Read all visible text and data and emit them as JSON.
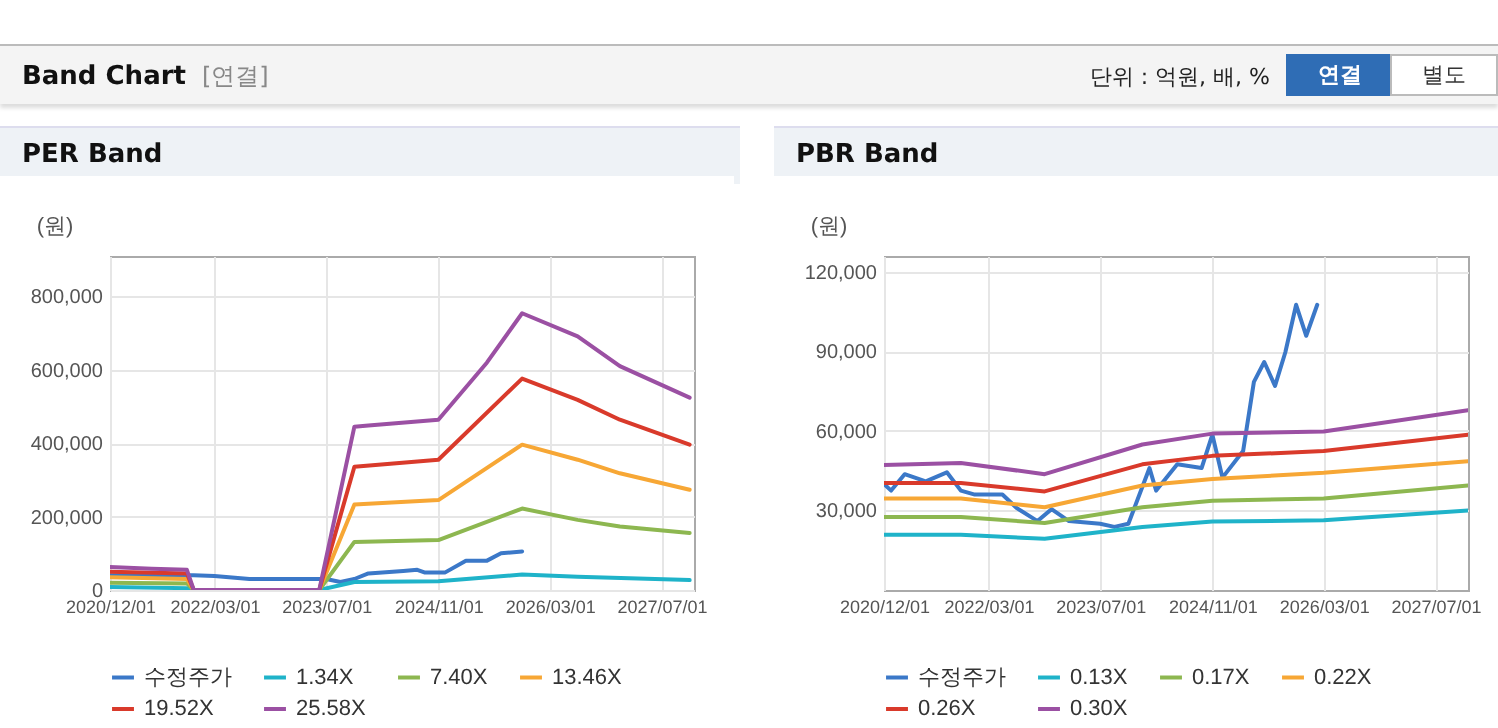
{
  "chart_data": [
    {
      "type": "other",
      "title": "Band Chart",
      "subtitle": "[연결]",
      "annotations": [
        "단위 : 억원, 배, %",
        "연결",
        "별도"
      ]
    },
    {
      "type": "line",
      "title": "PER Band",
      "ylabel": "(원)",
      "grid": true,
      "legend": "bottom",
      "xlim": [
        "2020-12-01",
        "2027-11-20"
      ],
      "xticks": [
        {
          "value": "2020-12-01",
          "label": "2020/12/01"
        },
        {
          "value": "2022-03-01",
          "label": "2022/03/01"
        },
        {
          "value": "2023-07-01",
          "label": "2023/07/01"
        },
        {
          "value": "2024-11-01",
          "label": "2024/11/01"
        },
        {
          "value": "2026-03-01",
          "label": "2026/03/01"
        },
        {
          "value": "2027-07-01",
          "label": "2027/07/01"
        }
      ],
      "ylim": [
        0,
        910000
      ],
      "yticks": [
        {
          "value": 0,
          "label": "0"
        },
        {
          "value": 200000,
          "label": "200,000"
        },
        {
          "value": 400000,
          "label": "400,000"
        },
        {
          "value": 600000,
          "label": "600,000"
        },
        {
          "value": 800000,
          "label": "800,000"
        }
      ],
      "series": [
        {
          "name": "수정주가",
          "color": "#3b78c8",
          "x": [
            "2020-12-01",
            "2021-12-01",
            "2022-03-01",
            "2022-08-01",
            "2023-07-01",
            "2023-09-01",
            "2023-11-01",
            "2024-01-01",
            "2024-06-01",
            "2024-08-01",
            "2024-09-01",
            "2024-12-01",
            "2025-03-01",
            "2025-06-01",
            "2025-08-01",
            "2025-11-01"
          ],
          "values": [
            40000,
            40000,
            38000,
            30000,
            30000,
            22000,
            30000,
            45000,
            52000,
            55000,
            48000,
            48000,
            80000,
            80000,
            100000,
            105000
          ]
        },
        {
          "name": "1.34X",
          "color": "#1fb3c9",
          "x": [
            "2020-12-01",
            "2021-11-01",
            "2021-12-01",
            "2023-06-01",
            "2023-11-01",
            "2024-11-01",
            "2025-11-01",
            "2026-07-01",
            "2027-11-01"
          ],
          "values": [
            8000,
            5000,
            0,
            0,
            22000,
            24000,
            42000,
            36000,
            27000
          ]
        },
        {
          "name": "7.40X",
          "color": "#8db750",
          "x": [
            "2020-12-01",
            "2021-11-01",
            "2021-12-01",
            "2023-06-01",
            "2023-11-01",
            "2024-11-01",
            "2025-11-01",
            "2026-07-01",
            "2027-01-01",
            "2027-11-01"
          ],
          "values": [
            20000,
            18000,
            0,
            0,
            131000,
            136000,
            222000,
            191000,
            173000,
            155000
          ]
        },
        {
          "name": "13.46X",
          "color": "#f7a735",
          "x": [
            "2020-12-01",
            "2021-11-01",
            "2021-12-01",
            "2023-06-01",
            "2023-11-01",
            "2024-11-01",
            "2025-11-01",
            "2026-07-01",
            "2027-01-01",
            "2027-11-01"
          ],
          "values": [
            35000,
            30000,
            0,
            0,
            233000,
            245000,
            396000,
            355000,
            318000,
            273000
          ]
        },
        {
          "name": "19.52X",
          "color": "#d93a2b",
          "x": [
            "2020-12-01",
            "2021-11-01",
            "2021-12-01",
            "2023-06-01",
            "2023-11-01",
            "2024-11-01",
            "2025-11-01",
            "2026-07-01",
            "2027-01-01",
            "2027-11-01"
          ],
          "values": [
            50000,
            45000,
            0,
            0,
            336000,
            355000,
            576000,
            518000,
            464000,
            396000
          ]
        },
        {
          "name": "25.58X",
          "color": "#9b50a3",
          "x": [
            "2020-12-01",
            "2021-06-01",
            "2021-11-01",
            "2021-12-01",
            "2023-06-01",
            "2023-11-01",
            "2024-01-01",
            "2024-11-01",
            "2025-06-01",
            "2025-11-01",
            "2026-07-01",
            "2027-01-01",
            "2027-11-01"
          ],
          "values": [
            63000,
            58000,
            55000,
            0,
            0,
            445000,
            448000,
            464000,
            620000,
            754000,
            691000,
            610000,
            524000
          ]
        }
      ]
    },
    {
      "type": "line",
      "title": "PBR Band",
      "ylabel": "(원)",
      "grid": true,
      "legend": "bottom",
      "xlim": [
        "2020-12-01",
        "2027-11-20"
      ],
      "xticks": [
        {
          "value": "2020-12-01",
          "label": "2020/12/01"
        },
        {
          "value": "2022-03-01",
          "label": "2022/03/01"
        },
        {
          "value": "2023-07-01",
          "label": "2023/07/01"
        },
        {
          "value": "2024-11-01",
          "label": "2024/11/01"
        },
        {
          "value": "2026-03-01",
          "label": "2026/03/01"
        },
        {
          "value": "2027-07-01",
          "label": "2027/07/01"
        }
      ],
      "ylim": [
        0,
        126000
      ],
      "yticks": [
        {
          "value": 30000,
          "label": "30,000"
        },
        {
          "value": 60000,
          "label": "60,000"
        },
        {
          "value": 90000,
          "label": "90,000"
        },
        {
          "value": 120000,
          "label": "120,000"
        }
      ],
      "series": [
        {
          "name": "수정주가",
          "color": "#3b78c8",
          "x": [
            "2020-12-01",
            "2021-01-01",
            "2021-03-01",
            "2021-06-01",
            "2021-09-01",
            "2021-11-01",
            "2022-01-01",
            "2022-05-01",
            "2022-07-01",
            "2022-10-01",
            "2022-12-01",
            "2023-02-15",
            "2023-07-01",
            "2023-09-01",
            "2023-11-01",
            "2024-02-01",
            "2024-03-01",
            "2024-06-01",
            "2024-09-15",
            "2024-11-01",
            "2024-12-15",
            "2025-03-15",
            "2025-05-01",
            "2025-06-15",
            "2025-08-01",
            "2025-09-15",
            "2025-11-01",
            "2025-12-15",
            "2026-02-01"
          ],
          "values": [
            40000,
            37500,
            43700,
            41000,
            44400,
            37500,
            36000,
            36000,
            31000,
            26000,
            30500,
            26000,
            25000,
            23800,
            25000,
            46000,
            37500,
            47400,
            46000,
            58600,
            42400,
            52400,
            78500,
            86000,
            77000,
            89700,
            107600,
            95900,
            107600
          ]
        },
        {
          "name": "0.13X",
          "color": "#1fb3c9",
          "x": [
            "2020-12-01",
            "2021-11-01",
            "2022-11-01",
            "2024-01-01",
            "2024-11-01",
            "2026-03-01",
            "2027-11-20"
          ],
          "values": [
            20800,
            20800,
            19300,
            23800,
            25800,
            26300,
            30000
          ]
        },
        {
          "name": "0.17X",
          "color": "#8db750",
          "x": [
            "2020-12-01",
            "2021-11-01",
            "2022-11-01",
            "2024-01-01",
            "2024-11-01",
            "2026-03-01",
            "2027-11-20"
          ],
          "values": [
            27500,
            27500,
            25300,
            31200,
            33700,
            34500,
            39400
          ]
        },
        {
          "name": "0.22X",
          "color": "#f7a735",
          "x": [
            "2020-12-01",
            "2021-11-01",
            "2022-11-01",
            "2024-01-01",
            "2024-11-01",
            "2026-03-01",
            "2027-11-20"
          ],
          "values": [
            34500,
            34500,
            31200,
            39400,
            41900,
            44200,
            48600
          ]
        },
        {
          "name": "0.26X",
          "color": "#d93a2b",
          "x": [
            "2020-12-01",
            "2021-11-01",
            "2022-11-01",
            "2024-01-01",
            "2024-11-01",
            "2026-03-01",
            "2027-11-20"
          ],
          "values": [
            40400,
            40400,
            37200,
            47400,
            50600,
            52400,
            58600
          ]
        },
        {
          "name": "0.30X",
          "color": "#9b50a3",
          "x": [
            "2020-12-01",
            "2021-11-01",
            "2022-11-01",
            "2024-01-01",
            "2024-11-01",
            "2026-03-01",
            "2027-11-20"
          ],
          "values": [
            47200,
            47900,
            43700,
            54900,
            59000,
            59800,
            67800
          ]
        }
      ]
    }
  ]
}
